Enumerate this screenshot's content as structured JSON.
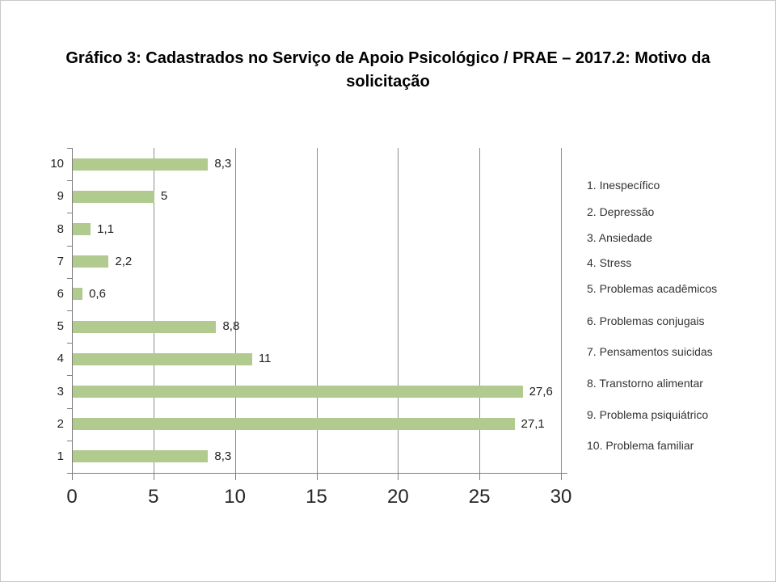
{
  "title": {
    "line1": "Gráfico 3: Cadastrados no Serviço de Apoio Psicológico / PRAE – 2017.2: Motivo da",
    "line2": "solicitação",
    "full": "Gráfico 3: Cadastrados no Serviço de Apoio Psicológico / PRAE – 2017.2: Motivo da solicitação"
  },
  "chart_data": {
    "type": "bar",
    "orientation": "horizontal",
    "title": "Gráfico 3: Cadastrados no Serviço de Apoio Psicológico / PRAE – 2017.2: Motivo da solicitação",
    "categories": [
      "1",
      "2",
      "3",
      "4",
      "5",
      "6",
      "7",
      "8",
      "9",
      "10"
    ],
    "values": [
      8.3,
      27.1,
      27.6,
      11,
      8.8,
      0.6,
      2.2,
      1.1,
      5,
      8.3
    ],
    "value_labels": [
      "8,3",
      "27,1",
      "27,6",
      "11",
      "8,8",
      "0,6",
      "2,2",
      "1,1",
      "5",
      "8,3"
    ],
    "xlim": [
      0,
      30
    ],
    "x_ticks": [
      0,
      5,
      10,
      15,
      20,
      25,
      30
    ],
    "grid": true,
    "bar_color": "#b0cb8d",
    "legend_position": "right",
    "legend": [
      "1. Inespecífico",
      "2. Depressão",
      "3. Ansiedade",
      "4. Stress",
      "5. Problemas acadêmicos",
      "6. Problemas conjugais",
      "7. Pensamentos suicidas",
      "8. Transtorno  alimentar",
      "9. Problema psiquiátrico",
      "10. Problema familiar"
    ]
  }
}
